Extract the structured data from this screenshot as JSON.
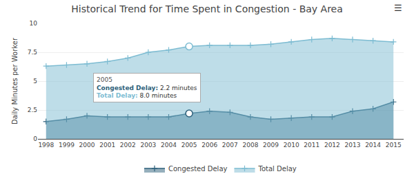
{
  "chart_data": {
    "type": "area",
    "title": "Historical Trend for Time Spent in Congestion - Bay Area",
    "y_label": "Daily Minutes per Worker",
    "x": [
      1998,
      1999,
      2000,
      2001,
      2002,
      2003,
      2004,
      2005,
      2006,
      2007,
      2008,
      2009,
      2010,
      2011,
      2012,
      2013,
      2014,
      2015
    ],
    "series": [
      {
        "name": "Congested Delay",
        "color": "#2c5f7a",
        "values": [
          1.5,
          1.7,
          2.0,
          1.9,
          1.9,
          1.9,
          1.9,
          2.2,
          2.4,
          2.3,
          1.9,
          1.7,
          1.8,
          1.9,
          1.9,
          2.4,
          2.6,
          3.2
        ]
      },
      {
        "name": "Total Delay",
        "color": "#7dbcd2",
        "values": [
          6.3,
          6.4,
          6.5,
          6.7,
          7.0,
          7.5,
          7.7,
          8.0,
          8.1,
          8.1,
          8.1,
          8.2,
          8.4,
          8.6,
          8.7,
          8.6,
          8.5,
          8.4
        ]
      }
    ],
    "marker": "plus",
    "xlim": [
      1997.6,
      2015.5
    ],
    "xticks": [
      1998,
      1999,
      2000,
      2001,
      2002,
      2003,
      2004,
      2005,
      2006,
      2007,
      2008,
      2009,
      2010,
      2011,
      2012,
      2013,
      2014,
      2015
    ],
    "ylim": [
      0,
      10
    ],
    "yticks": [
      0,
      2.5,
      5,
      7.5,
      10
    ],
    "grid": true,
    "legend": "bottom",
    "annotations": [
      {
        "x": 2005,
        "lines": [
          [
            "Congested Delay:",
            "2.2 minutes"
          ],
          [
            "Total Delay:",
            "8.0 minutes"
          ]
        ]
      },
      {
        "text": "☰"
      }
    ]
  }
}
